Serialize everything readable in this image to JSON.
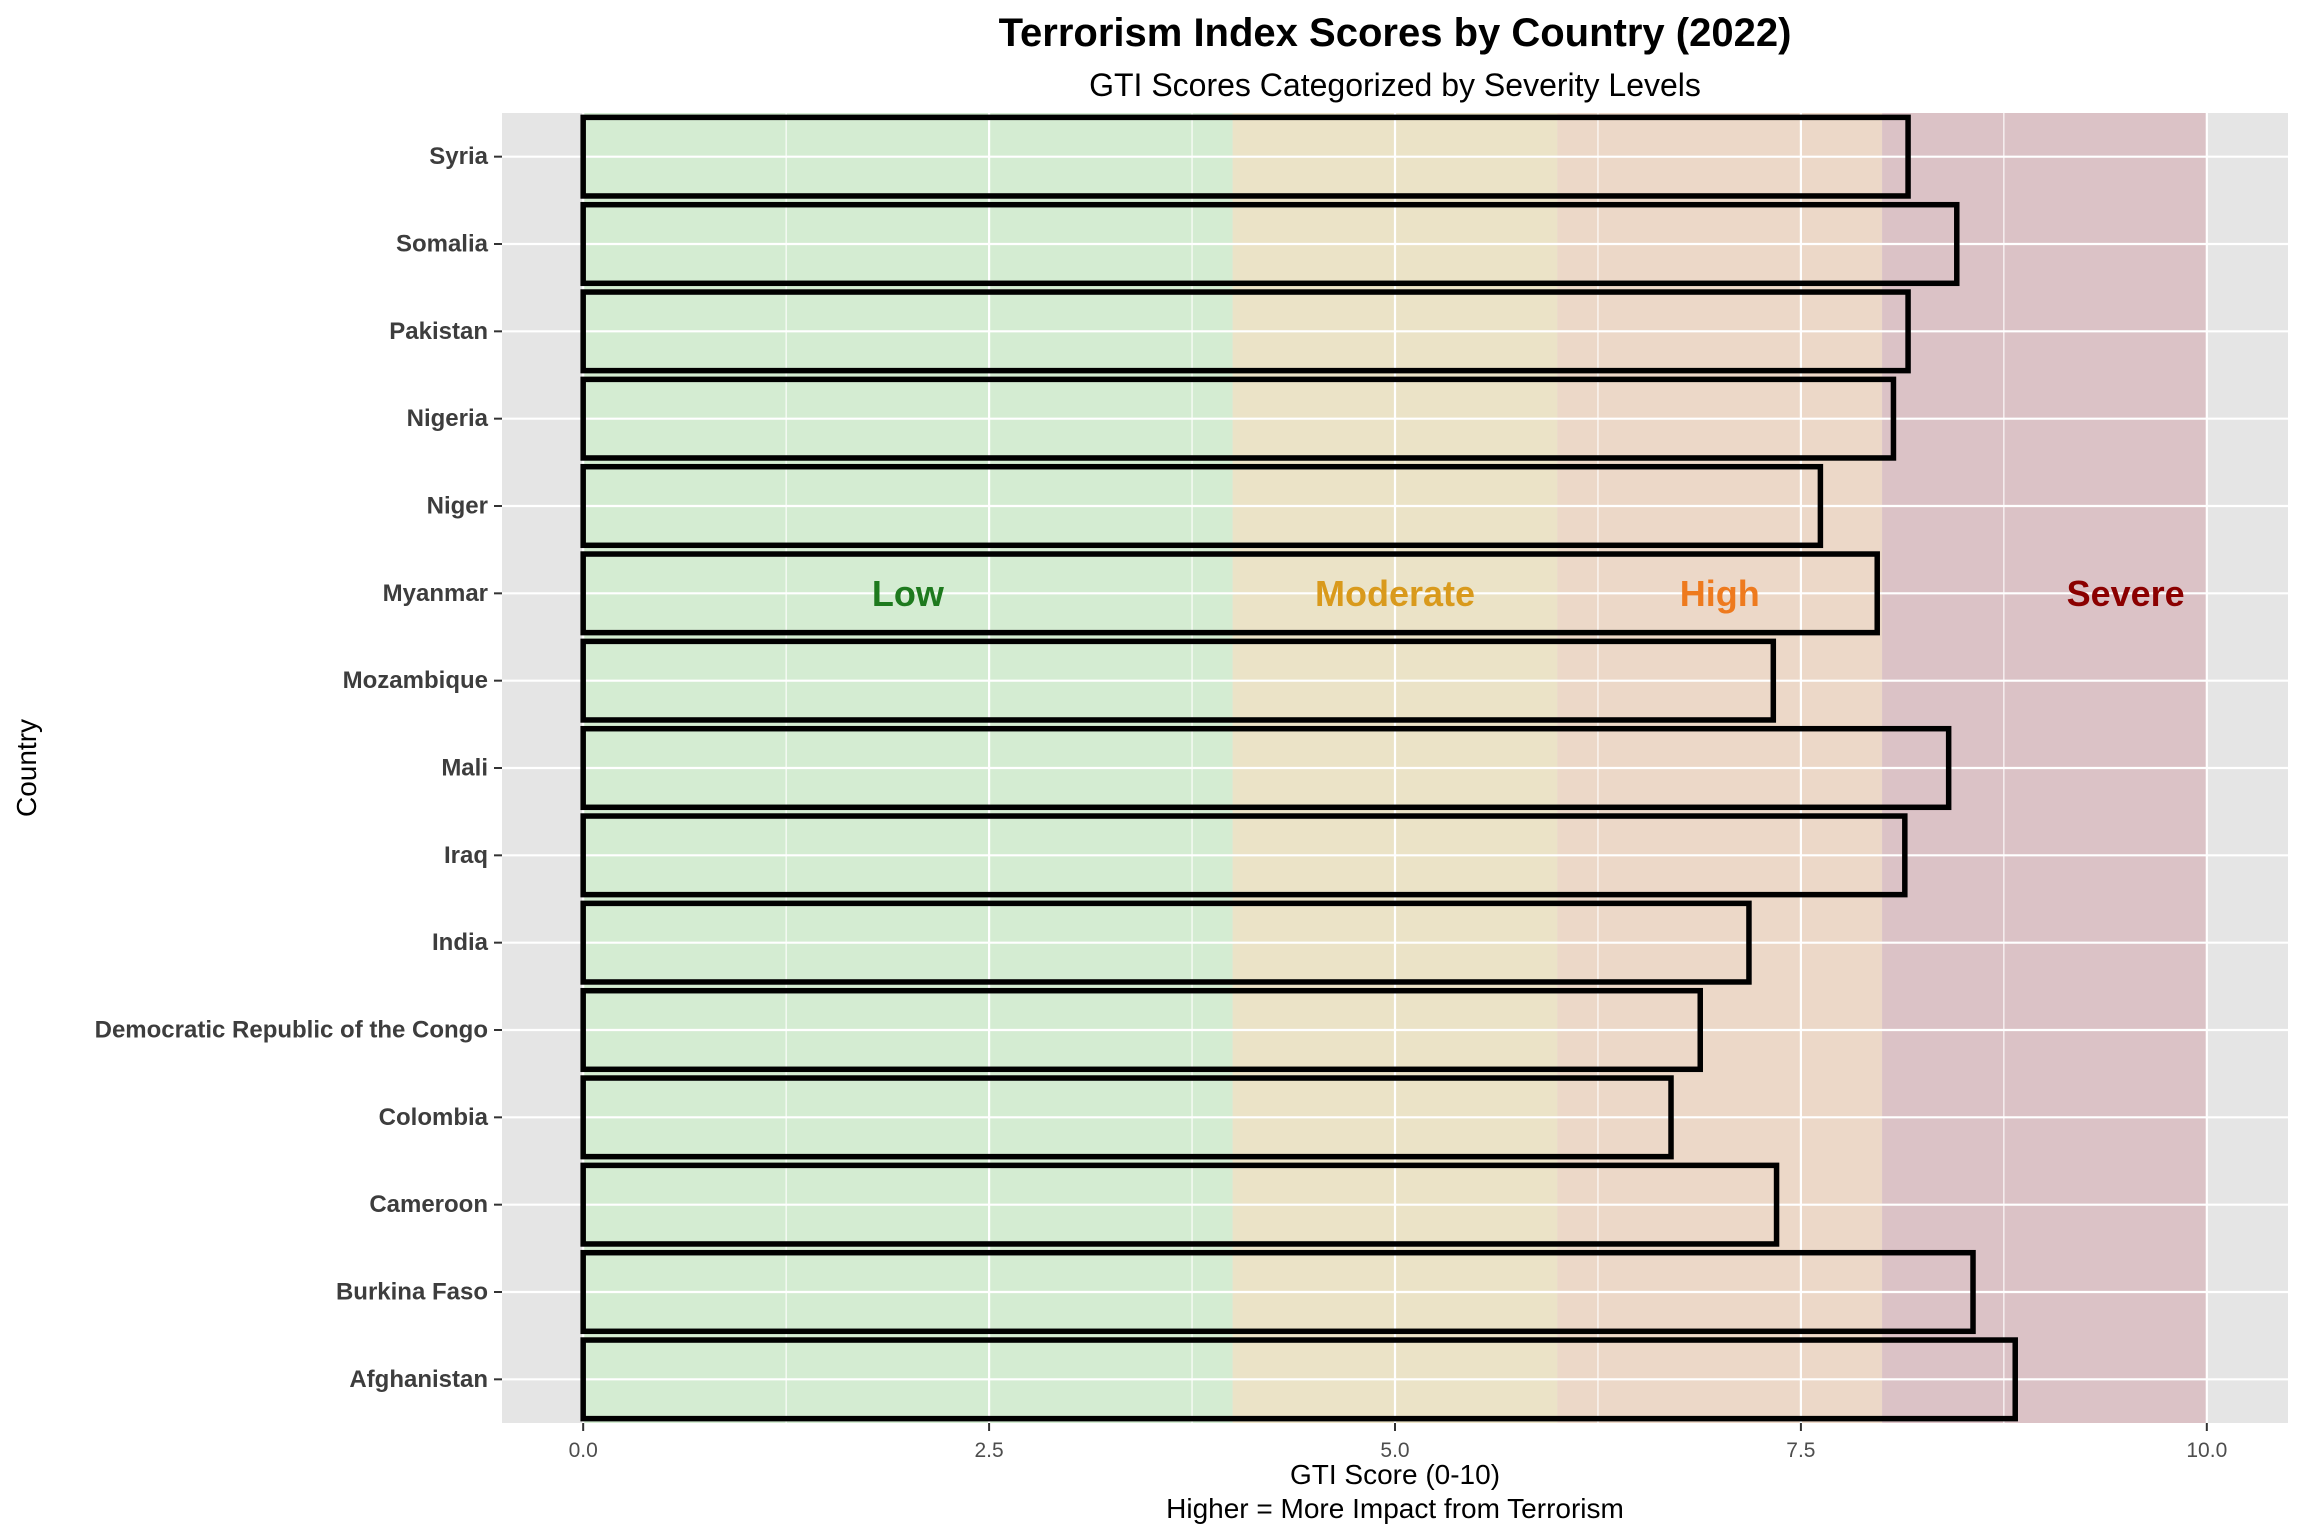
{
  "chart_data": {
    "type": "bar",
    "orientation": "horizontal",
    "title": "Terrorism Index Scores by Country (2022)",
    "subtitle": "GTI Scores Categorized by Severity Levels",
    "xlabel": "GTI Score (0-10)",
    "xlabel_line2": "Higher = More Impact from Terrorism",
    "ylabel": "Country",
    "xlim": [
      -0.5,
      10.5
    ],
    "x_ticks": [
      0.0,
      2.5,
      5.0,
      7.5,
      10.0
    ],
    "x_tick_labels": [
      "0.0",
      "2.5",
      "5.0",
      "7.5",
      "10.0"
    ],
    "grid": true,
    "categories": [
      "Afghanistan",
      "Burkina Faso",
      "Cameroon",
      "Colombia",
      "Democratic Republic of the Congo",
      "India",
      "Iraq",
      "Mali",
      "Mozambique",
      "Myanmar",
      "Niger",
      "Nigeria",
      "Pakistan",
      "Somalia",
      "Syria"
    ],
    "values": [
      8.82,
      8.56,
      7.35,
      6.7,
      6.88,
      7.18,
      8.14,
      8.41,
      7.33,
      7.97,
      7.62,
      8.07,
      8.16,
      8.46,
      8.16
    ],
    "severity_bands": [
      {
        "label": "Low",
        "from": 0,
        "to": 4,
        "fill": "#d4ecd2",
        "text_color": "#1e7a1e",
        "label_x": 2.0
      },
      {
        "label": "Moderate",
        "from": 4,
        "to": 6,
        "fill": "#ebe3c7",
        "text_color": "#d99a1c",
        "label_x": 5.0
      },
      {
        "label": "High",
        "from": 6,
        "to": 8,
        "fill": "#ecd8c8",
        "text_color": "#ee7a1e",
        "label_x": 7.0
      },
      {
        "label": "Severe",
        "from": 8,
        "to": 10,
        "fill": "#dbc2c6",
        "text_color": "#8b0000",
        "label_x": 9.5
      }
    ],
    "band_label_row": "Myanmar",
    "colors": {
      "panel_background": "#e5e5e5",
      "grid_line": "#ffffff",
      "bar_outline": "#000000"
    }
  }
}
